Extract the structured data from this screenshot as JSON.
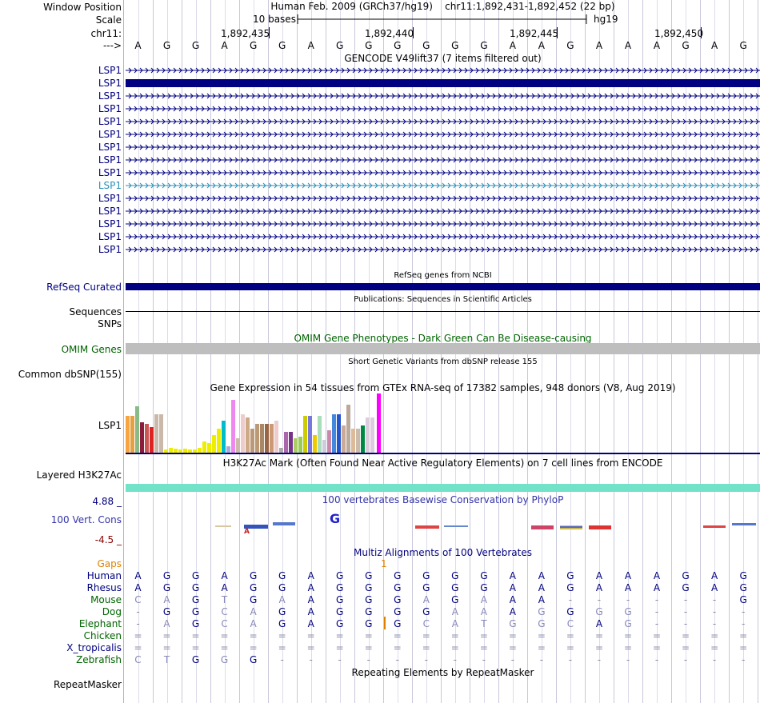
{
  "header": {
    "window_position_label": "Window Position",
    "window_position_text": "Human Feb. 2009 (GRCh37/hg19)    chr11:1,892,431-1,892,452 (22 bp)",
    "scale_label": "Scale",
    "scale_text": "10 bases",
    "assembly": "hg19",
    "chrom_label": "chr11:",
    "strand_label": "--->",
    "ruler_positions": [
      "1,892,435",
      "1,892,440",
      "1,892,445",
      "1,892,450"
    ],
    "sequence": [
      "A",
      "G",
      "G",
      "A",
      "G",
      "G",
      "A",
      "G",
      "G",
      "G",
      "G",
      "G",
      "G",
      "A",
      "A",
      "G",
      "A",
      "A",
      "A",
      "G",
      "A",
      "G"
    ]
  },
  "gencode": {
    "title": "GENCODE V49lift37 (7 items filtered out)",
    "items": [
      "LSP1",
      "LSP1",
      "LSP1",
      "LSP1",
      "LSP1",
      "LSP1",
      "LSP1",
      "LSP1",
      "LSP1",
      "LSP1",
      "LSP1",
      "LSP1",
      "LSP1",
      "LSP1",
      "LSP1"
    ],
    "thick_index": 1,
    "highlight_index": 9
  },
  "refseq": {
    "title": "RefSeq genes from NCBI",
    "label": "RefSeq Curated"
  },
  "publications": {
    "title": "Publications: Sequences in Scientific Articles",
    "label": "Sequences"
  },
  "snps": {
    "label": "SNPs"
  },
  "omim": {
    "title": "OMIM Gene Phenotypes - Dark Green Can Be Disease-causing",
    "label": "OMIM Genes"
  },
  "dbsnp": {
    "title": "Short Genetic Variants from dbSNP release 155",
    "label": "Common dbSNP(155)"
  },
  "gtex": {
    "title": "Gene Expression in 54 tissues from GTEx RNA-seq of 17382 samples, 948 donors (V8, Aug 2019)",
    "label": "LSP1"
  },
  "h3k27ac": {
    "title": "H3K27Ac Mark (Often Found Near Active Regulatory Elements) on 7 cell lines from ENCODE",
    "label": "Layered H3K27Ac"
  },
  "conservation": {
    "title": "100 vertebrates Basewise Conservation by PhyloP",
    "label": "100 Vert. Cons",
    "max_label": "4.88 _",
    "min_label": "-4.5 _"
  },
  "multiz": {
    "title": "Multiz Alignments of 100 Vertebrates",
    "gaps_label": "Gaps",
    "gap_marker": "1",
    "species": [
      {
        "name": "Human",
        "bases": [
          "A",
          "G",
          "G",
          "A",
          "G",
          "G",
          "A",
          "G",
          "G",
          "G",
          "G",
          "G",
          "G",
          "A",
          "A",
          "G",
          "A",
          "A",
          "A",
          "G",
          "A",
          "G"
        ]
      },
      {
        "name": "Rhesus",
        "bases": [
          "A",
          "G",
          "G",
          "A",
          "G",
          "G",
          "A",
          "G",
          "G",
          "G",
          "G",
          "G",
          "G",
          "A",
          "A",
          "G",
          "A",
          "A",
          "A",
          "G",
          "A",
          "G"
        ]
      },
      {
        "name": "Mouse",
        "bases": [
          "C",
          "A",
          "G",
          "T",
          "G",
          "A",
          "A",
          "G",
          "G",
          "G",
          "A",
          "G",
          "A",
          "A",
          "A",
          "-",
          "-",
          "-",
          "-",
          "-",
          "-",
          "G"
        ]
      },
      {
        "name": "Dog",
        "bases": [
          "-",
          "G",
          "G",
          "C",
          "A",
          "G",
          "A",
          "G",
          "G",
          "G",
          "G",
          "A",
          "A",
          "A",
          "G",
          "G",
          "G",
          "G",
          "-",
          "-",
          "-",
          "-"
        ]
      },
      {
        "name": "Elephant",
        "bases": [
          "-",
          "A",
          "G",
          "C",
          "A",
          "G",
          "A",
          "G",
          "G",
          "G",
          "C",
          "A",
          "T",
          "G",
          "G",
          "C",
          "A",
          "G",
          "-",
          "-",
          "-",
          "-"
        ]
      },
      {
        "name": "Chicken",
        "bases": [
          "=",
          "=",
          "=",
          "=",
          "=",
          "=",
          "=",
          "=",
          "=",
          "=",
          "=",
          "=",
          "=",
          "=",
          "=",
          "=",
          "=",
          "=",
          "=",
          "=",
          "=",
          "="
        ]
      },
      {
        "name": "X_tropicalis",
        "bases": [
          "=",
          "=",
          "=",
          "=",
          "=",
          "=",
          "=",
          "=",
          "=",
          "=",
          "=",
          "=",
          "=",
          "=",
          "=",
          "=",
          "=",
          "=",
          "=",
          "=",
          "=",
          "="
        ]
      },
      {
        "name": "Zebrafish",
        "bases": [
          "C",
          "T",
          "G",
          "G",
          "G",
          "-",
          "-",
          "-",
          "-",
          "-",
          "-",
          "-",
          "-",
          "-",
          "-",
          "-",
          "-",
          "-",
          "-",
          "-",
          "-",
          "-"
        ]
      }
    ]
  },
  "repeatmasker": {
    "title": "Repeating Elements by RepeatMasker",
    "label": "RepeatMasker"
  },
  "colors": {
    "navy": "#000080",
    "omim_label": "#006400",
    "omim_bar": "#bebebe",
    "h3k27ac_bar": "#72e3c8",
    "gaps_orange": "#e08000",
    "phylop_blue": "#3333aa",
    "grid": "#c8c8dc"
  }
}
